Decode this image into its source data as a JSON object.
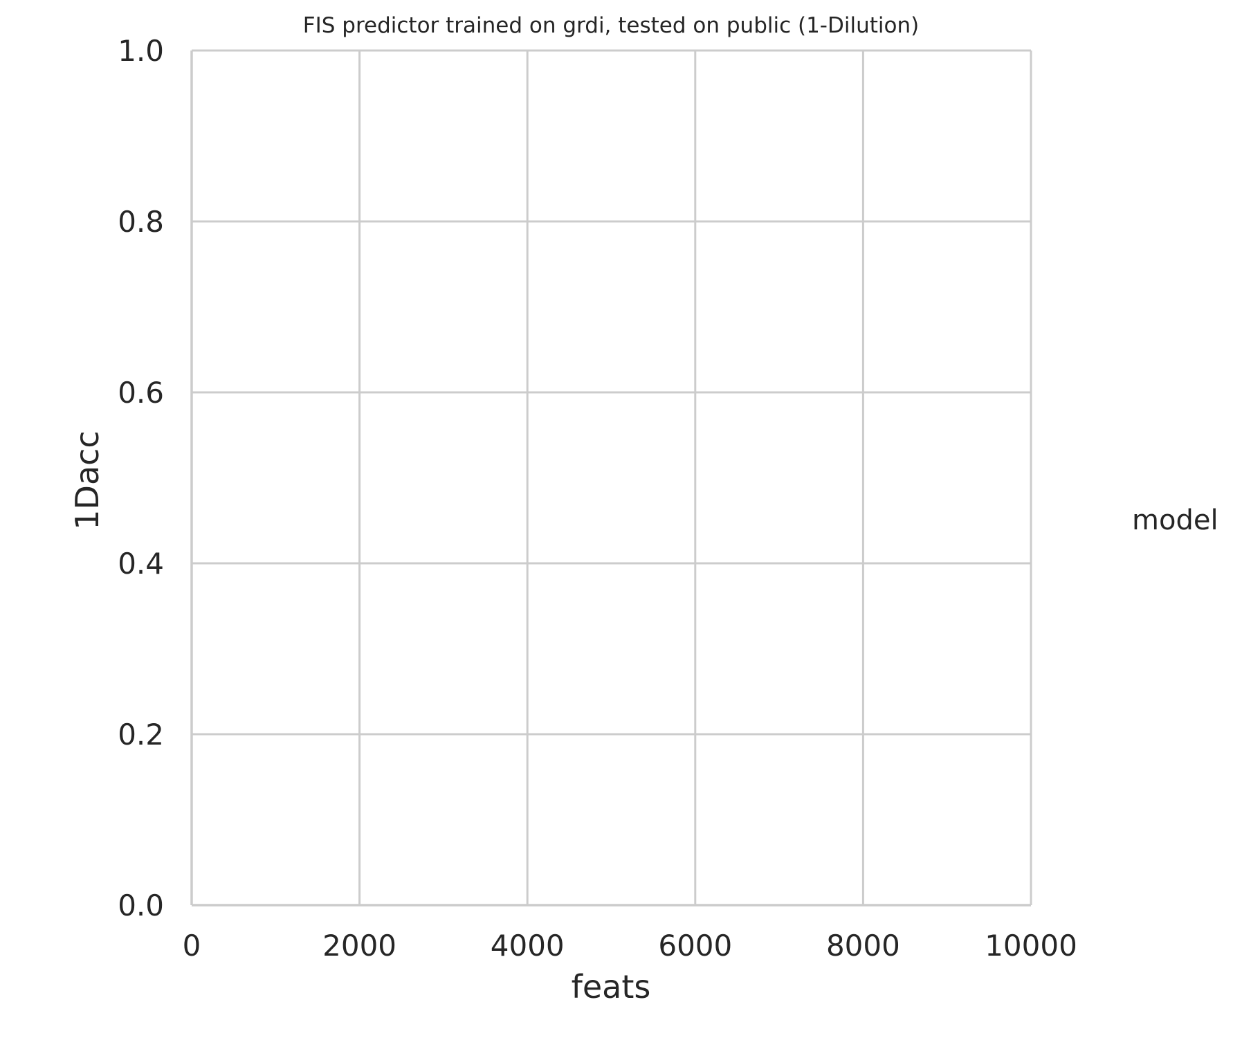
{
  "chart_data": {
    "type": "line",
    "title": "FIS predictor trained on grdi, tested on public (1-Dilution)",
    "xlabel": "feats",
    "ylabel": "1Dacc",
    "xlim": [
      0,
      10000
    ],
    "ylim": [
      0.0,
      1.0
    ],
    "x_ticks": [
      0,
      2000,
      4000,
      6000,
      8000,
      10000
    ],
    "x_tick_labels": [
      "0",
      "2000",
      "4000",
      "6000",
      "8000",
      "10000"
    ],
    "y_ticks": [
      0.0,
      0.2,
      0.4,
      0.6,
      0.8,
      1.0
    ],
    "y_tick_labels": [
      "0.0",
      "0.2",
      "0.4",
      "0.6",
      "0.8",
      "1.0"
    ],
    "grid": true,
    "legend": {
      "title": "model",
      "placement": "right",
      "entries": []
    },
    "series": []
  },
  "colors": {
    "grid": "#cccccc",
    "text": "#262626",
    "background": "#ffffff"
  }
}
